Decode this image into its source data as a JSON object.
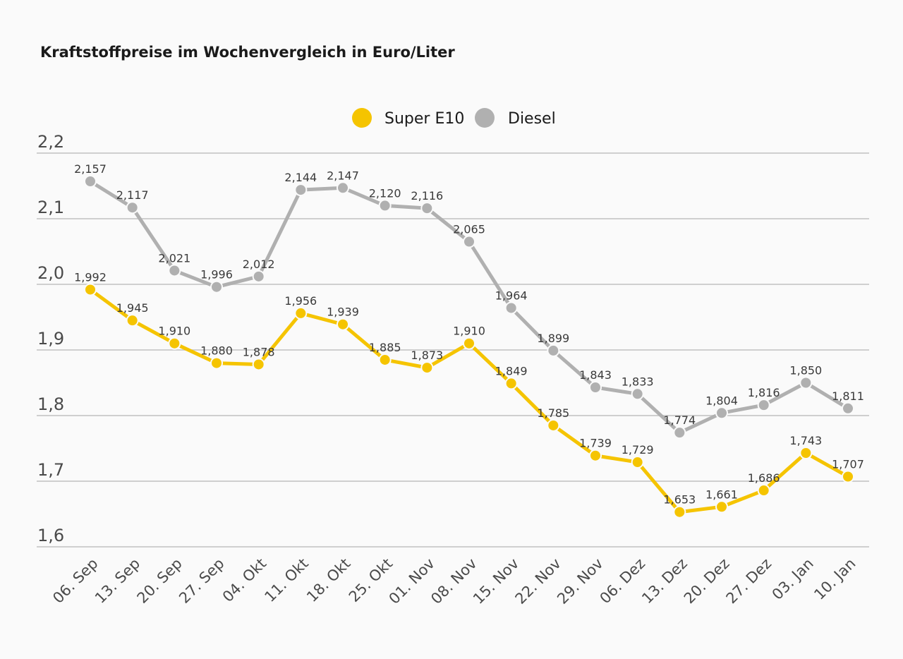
{
  "chart_data": {
    "type": "line",
    "title": "Kraftstoffpreise im Wochenvergleich in Euro/Liter",
    "xlabel": "",
    "ylabel": "",
    "ylim": [
      1.6,
      2.2
    ],
    "yticks": [
      2.2,
      2.1,
      2.0,
      1.9,
      1.8,
      1.7,
      1.6
    ],
    "ytick_labels": [
      "2,2",
      "2,1",
      "2,0",
      "1,9",
      "1,8",
      "1,7",
      "1,6"
    ],
    "grid": true,
    "legend_position": "top-center",
    "categories": [
      "06. Sep",
      "13. Sep",
      "20. Sep",
      "27. Sep",
      "04. Okt",
      "11. Okt",
      "18. Okt",
      "25. Okt",
      "01. Nov",
      "08. Nov",
      "15. Nov",
      "22. Nov",
      "29. Nov",
      "06. Dez",
      "13. Dez",
      "20. Dez",
      "27. Dez",
      "03. Jan",
      "10. Jan"
    ],
    "series": [
      {
        "name": "Super E10",
        "color": "#f5c400",
        "values": [
          1.992,
          1.945,
          1.91,
          1.88,
          1.878,
          1.956,
          1.939,
          1.885,
          1.873,
          1.91,
          1.849,
          1.785,
          1.739,
          1.729,
          1.653,
          1.661,
          1.686,
          1.743,
          1.707
        ],
        "labels": [
          "1,992",
          "1,945",
          "1,910",
          "1,880",
          "1,878",
          "1,956",
          "1,939",
          "1,885",
          "1,873",
          "1,910",
          "1,849",
          "1,785",
          "1,739",
          "1,729",
          "1,653",
          "1,661",
          "1,686",
          "1,743",
          "1,707"
        ]
      },
      {
        "name": "Diesel",
        "color": "#b0b0b0",
        "values": [
          2.157,
          2.117,
          2.021,
          1.996,
          2.012,
          2.144,
          2.147,
          2.12,
          2.116,
          2.065,
          1.964,
          1.899,
          1.843,
          1.833,
          1.774,
          1.804,
          1.816,
          1.85,
          1.811
        ],
        "labels": [
          "2,157",
          "2,117",
          "2,021",
          "1,996",
          "2,012",
          "2,144",
          "2,147",
          "2,120",
          "2,116",
          "2,065",
          "1,964",
          "1,899",
          "1,843",
          "1,833",
          "1,774",
          "1,804",
          "1,816",
          "1,850",
          "1,811"
        ]
      }
    ]
  }
}
